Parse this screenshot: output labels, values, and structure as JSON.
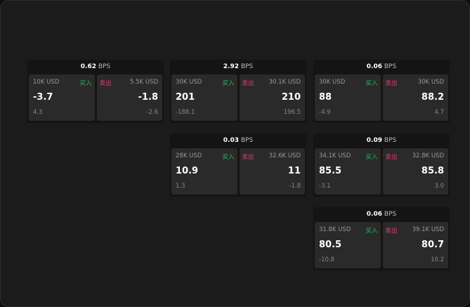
{
  "colors": {
    "buy": "#2fb36a",
    "sell": "#e0406a"
  },
  "buy_label": "买入",
  "sell_label": "卖出",
  "unit": "BPS",
  "cards": [
    {
      "spread": "0.62",
      "buy": {
        "amount": "10K USD",
        "price": "-3.7",
        "change": "4.3"
      },
      "sell": {
        "amount": "5.5K USD",
        "price": "-1.8",
        "change": "-2.6"
      }
    },
    {
      "spread": "2.92",
      "buy": {
        "amount": "30K USD",
        "price": "201",
        "change": "-188.1"
      },
      "sell": {
        "amount": "30.1K USD",
        "price": "210",
        "change": "196.5"
      }
    },
    {
      "spread": "0.06",
      "buy": {
        "amount": "30K USD",
        "price": "88",
        "change": "-4.9"
      },
      "sell": {
        "amount": "30K USD",
        "price": "88.2",
        "change": "4.7"
      }
    },
    {
      "spread": "0.03",
      "buy": {
        "amount": "28K USD",
        "price": "10.9",
        "change": "1.3"
      },
      "sell": {
        "amount": "32.6K USD",
        "price": "11",
        "change": "-1.8"
      }
    },
    {
      "spread": "0.09",
      "buy": {
        "amount": "34.1K USD",
        "price": "85.5",
        "change": "-3.1"
      },
      "sell": {
        "amount": "32.8K USD",
        "price": "85.8",
        "change": "3.0"
      }
    },
    {
      "spread": "0.06",
      "buy": {
        "amount": "31.8K USD",
        "price": "80.5",
        "change": "-10.8"
      },
      "sell": {
        "amount": "39.1K USD",
        "price": "80.7",
        "change": "10.2"
      }
    }
  ]
}
